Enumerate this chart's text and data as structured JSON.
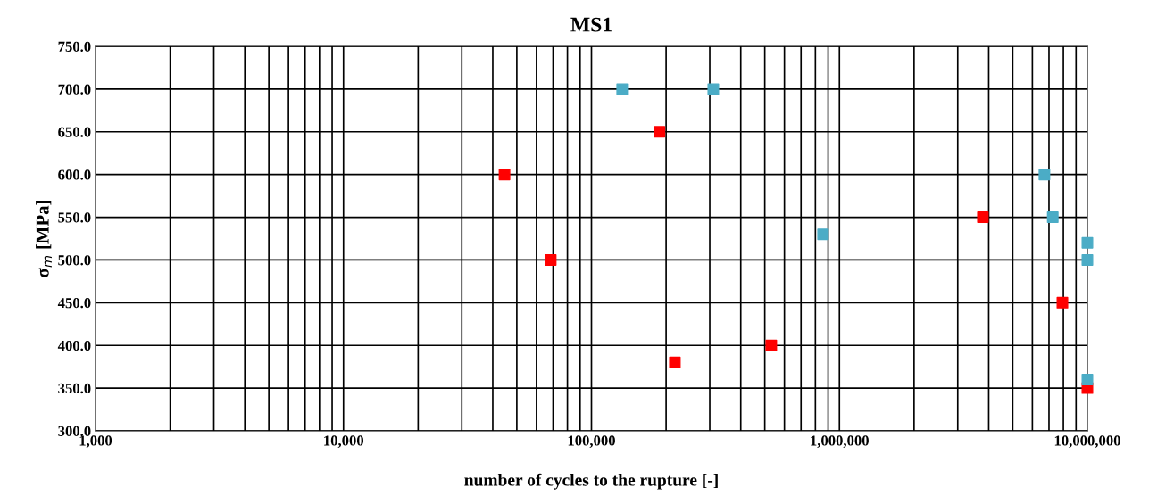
{
  "chart_data": {
    "type": "scatter",
    "title": "MS1",
    "xlabel": "number of cycles to the rupture [-]",
    "ylabel": "σ$_{m}$ [MPa]",
    "log": "x",
    "grid": true,
    "marker": "square",
    "xlim": [
      1000,
      10000000
    ],
    "xticks": [
      {
        "value": 1000,
        "label": "1,000"
      },
      {
        "value": 10000,
        "label": "10,000"
      },
      {
        "value": 100000,
        "label": "100,000"
      },
      {
        "value": 1000000,
        "label": "1,000,000"
      },
      {
        "value": 10000000,
        "label": "10,000,000"
      }
    ],
    "ylim": [
      300,
      750
    ],
    "yticks": [
      {
        "value": 300,
        "label": "300.0"
      },
      {
        "value": 350,
        "label": "350.0"
      },
      {
        "value": 400,
        "label": "400.0"
      },
      {
        "value": 450,
        "label": "450.0"
      },
      {
        "value": 500,
        "label": "500.0"
      },
      {
        "value": 550,
        "label": "550.0"
      },
      {
        "value": 600,
        "label": "600.0"
      },
      {
        "value": 650,
        "label": "650.0"
      },
      {
        "value": 700,
        "label": "700.0"
      },
      {
        "value": 750,
        "label": "750.0"
      }
    ],
    "series": [
      {
        "color": "#ff0000",
        "x": [
          44600,
          68500,
          188000,
          217000,
          531000,
          3790000,
          7930000,
          10000000
        ],
        "values": [
          600,
          500,
          650,
          380,
          400,
          550,
          450,
          350
        ]
      },
      {
        "color": "#4bacc6",
        "x": [
          133000,
          310000,
          859000,
          6710000,
          7250000,
          10000000,
          10000000,
          10000000
        ],
        "values": [
          700,
          700,
          530,
          600,
          550,
          520,
          500,
          360
        ]
      }
    ]
  }
}
